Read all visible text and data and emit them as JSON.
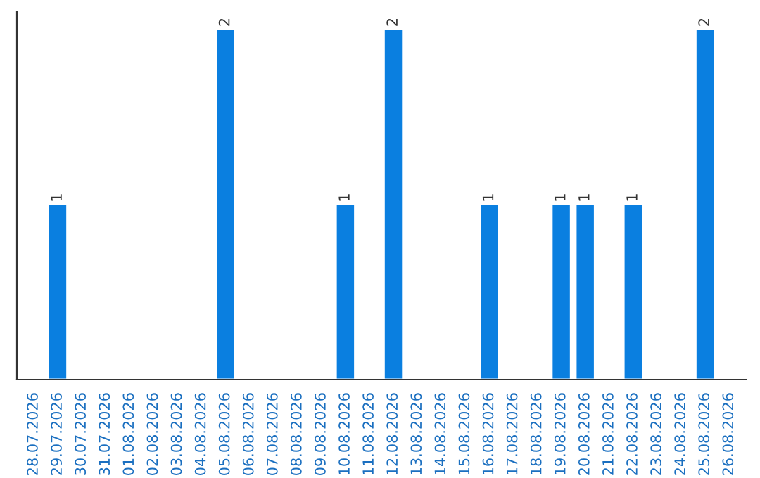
{
  "chart_data": {
    "type": "bar",
    "categories": [
      "28.07.2026",
      "29.07.2026",
      "30.07.2026",
      "31.07.2026",
      "01.08.2026",
      "02.08.2026",
      "03.08.2026",
      "04.08.2026",
      "05.08.2026",
      "06.08.2026",
      "07.08.2026",
      "08.08.2026",
      "09.08.2026",
      "10.08.2026",
      "11.08.2026",
      "12.08.2026",
      "13.08.2026",
      "14.08.2026",
      "15.08.2026",
      "16.08.2026",
      "17.08.2026",
      "18.08.2026",
      "19.08.2026",
      "20.08.2026",
      "21.08.2026",
      "22.08.2026",
      "23.08.2026",
      "24.08.2026",
      "25.08.2026",
      "26.08.2026"
    ],
    "values": [
      null,
      1,
      null,
      null,
      null,
      null,
      null,
      null,
      2,
      null,
      null,
      null,
      null,
      1,
      null,
      2,
      null,
      null,
      null,
      1,
      null,
      null,
      1,
      1,
      null,
      1,
      null,
      null,
      2,
      null
    ],
    "color": "#0a7fe0",
    "data_labels": true,
    "grid": false,
    "tick_labels": "x"
  }
}
